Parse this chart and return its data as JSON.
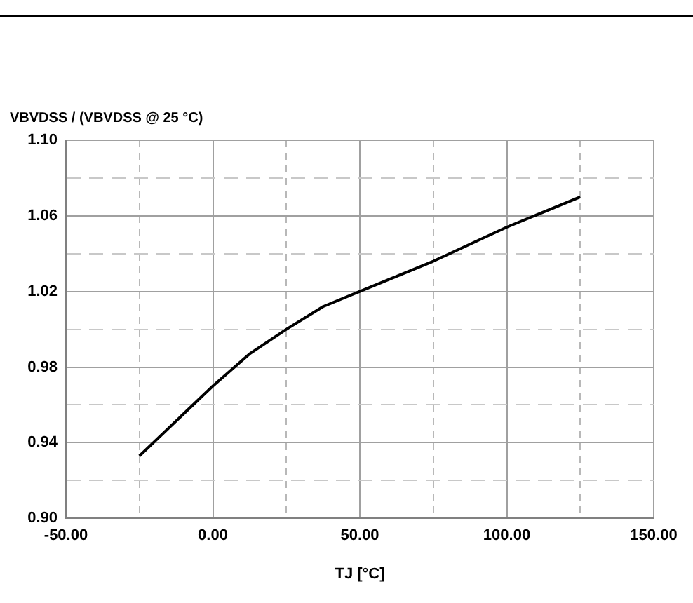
{
  "chart_data": {
    "type": "line",
    "xlabel": "TJ [°C]",
    "ylabel": "VBVDSS / (VBVDSS @ 25 °C)",
    "x": [
      -25,
      0,
      12.5,
      25,
      37.5,
      50,
      75,
      100,
      125
    ],
    "series": [
      {
        "color": "#000000",
        "values": [
          0.933,
          0.97,
          0.987,
          1.0,
          1.012,
          1.02,
          1.036,
          1.054,
          1.07
        ]
      }
    ],
    "xlim": [
      -50,
      150
    ],
    "xticks": [
      {
        "value": -50,
        "label": "-50.00"
      },
      {
        "value": -25,
        "label": null
      },
      {
        "value": 0,
        "label": "0.00"
      },
      {
        "value": 25,
        "label": null
      },
      {
        "value": 50,
        "label": "50.00"
      },
      {
        "value": 75,
        "label": null
      },
      {
        "value": 100,
        "label": "100.00"
      },
      {
        "value": 125,
        "label": null
      },
      {
        "value": 150,
        "label": "150.00"
      }
    ],
    "ylim": [
      0.9,
      1.1
    ],
    "yticks": [
      {
        "value": 0.9,
        "label": "0.90"
      },
      {
        "value": 0.92,
        "label": null
      },
      {
        "value": 0.94,
        "label": "0.94"
      },
      {
        "value": 0.96,
        "label": null
      },
      {
        "value": 0.98,
        "label": "0.98"
      },
      {
        "value": 1.0,
        "label": null
      },
      {
        "value": 1.02,
        "label": "1.02"
      },
      {
        "value": 1.04,
        "label": null
      },
      {
        "value": 1.06,
        "label": "1.06"
      },
      {
        "value": 1.08,
        "label": null
      },
      {
        "value": 1.1,
        "label": "1.10"
      }
    ],
    "grid": true,
    "legend": false,
    "marker": "none",
    "line_style": "solid"
  }
}
